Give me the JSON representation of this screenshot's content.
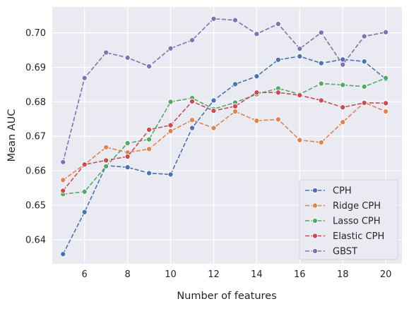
{
  "chart_data": {
    "type": "line",
    "xlabel": "Number of features",
    "ylabel": "Mean AUC",
    "xlim": [
      4.5,
      20.75
    ],
    "ylim": [
      0.633,
      0.7075
    ],
    "xticks": [
      6,
      8,
      10,
      12,
      14,
      16,
      18,
      20
    ],
    "yticks": [
      0.64,
      0.65,
      0.66,
      0.67,
      0.68,
      0.69,
      0.7
    ],
    "ytick_labels": [
      "0.64",
      "0.65",
      "0.66",
      "0.67",
      "0.68",
      "0.69",
      "0.70"
    ],
    "grid": true,
    "legend_position": "lower-right",
    "x": [
      5,
      6,
      7,
      8,
      9,
      10,
      11,
      12,
      13,
      14,
      15,
      16,
      17,
      18,
      19,
      20
    ],
    "series": [
      {
        "name": "CPH",
        "color": "#4c72b0",
        "values": [
          0.6358,
          0.648,
          0.6615,
          0.661,
          0.6593,
          0.6589,
          0.6724,
          0.6804,
          0.6851,
          0.6874,
          0.6922,
          0.6932,
          0.6912,
          0.6923,
          0.6917,
          0.6866
        ]
      },
      {
        "name": "Ridge CPH",
        "color": "#dd8452",
        "values": [
          0.6573,
          0.6618,
          0.6668,
          0.6653,
          0.6663,
          0.6715,
          0.6747,
          0.6724,
          0.6772,
          0.6745,
          0.6749,
          0.6689,
          0.6682,
          0.6741,
          0.6798,
          0.6772
        ]
      },
      {
        "name": "Lasso CPH",
        "color": "#55a868",
        "values": [
          0.6532,
          0.6539,
          0.6613,
          0.668,
          0.6691,
          0.68,
          0.6811,
          0.6779,
          0.6798,
          0.6822,
          0.6839,
          0.6822,
          0.6853,
          0.6849,
          0.6844,
          0.6869
        ]
      },
      {
        "name": "Elastic CPH",
        "color": "#c44e52",
        "values": [
          0.6542,
          0.6618,
          0.663,
          0.6641,
          0.6719,
          0.6732,
          0.6801,
          0.6774,
          0.6787,
          0.6827,
          0.6827,
          0.6819,
          0.6804,
          0.6784,
          0.6797,
          0.6796
        ]
      },
      {
        "name": "GBST",
        "color": "#8172b3",
        "values": [
          0.6625,
          0.6869,
          0.6943,
          0.6928,
          0.6903,
          0.6955,
          0.6979,
          0.7041,
          0.7037,
          0.6997,
          0.7026,
          0.6954,
          0.7001,
          0.6908,
          0.699,
          0.7002
        ]
      }
    ]
  }
}
